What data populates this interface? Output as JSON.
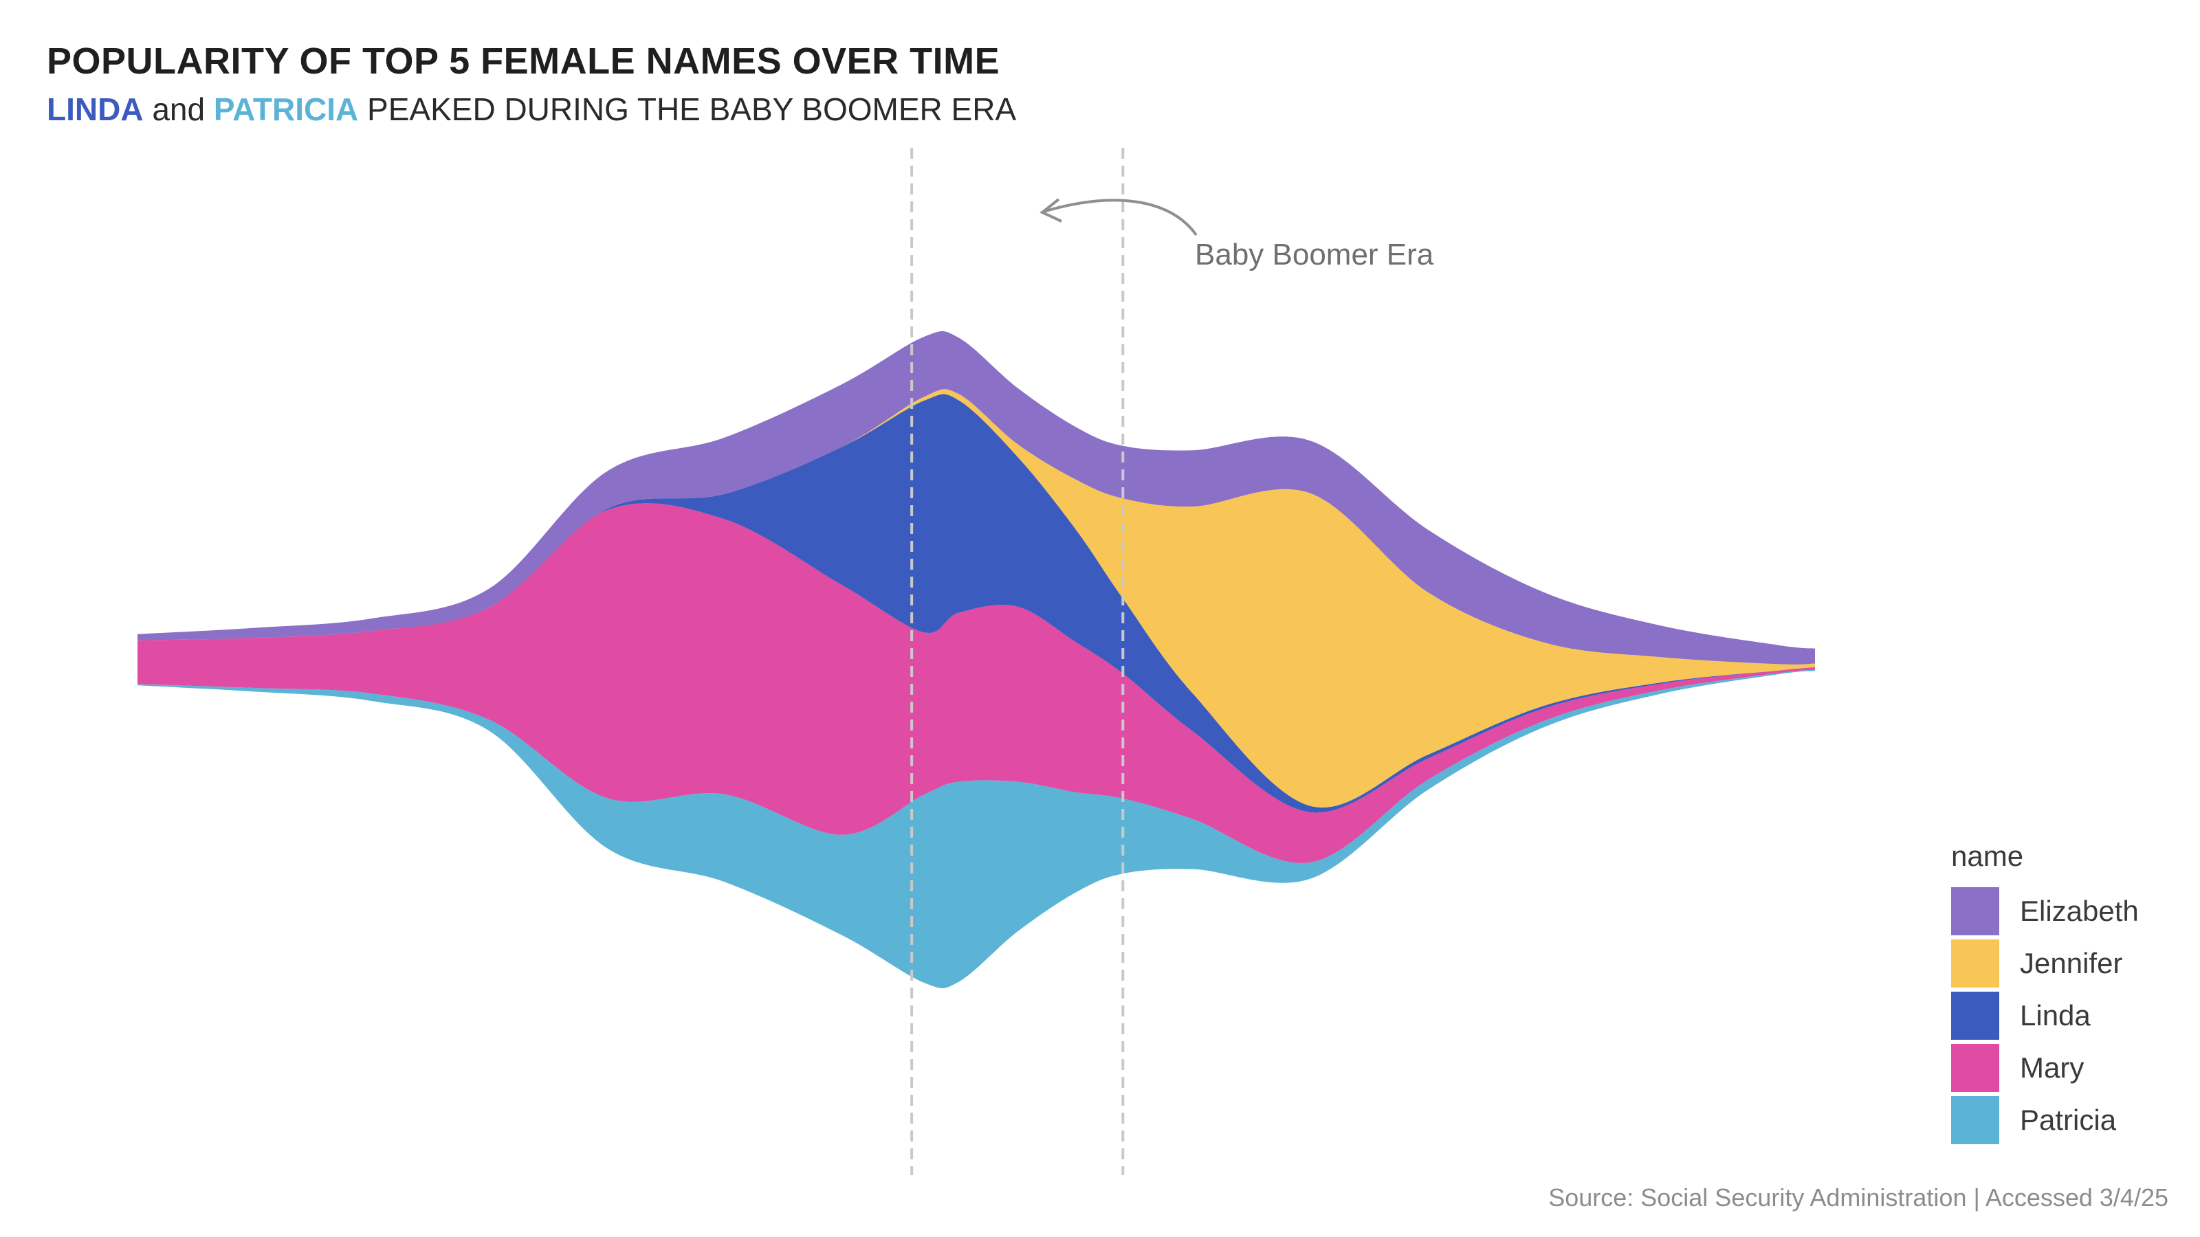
{
  "title": "POPULARITY OF TOP 5 FEMALE NAMES OVER TIME",
  "subtitle": {
    "linda": "LINDA",
    "and": "and",
    "patricia": "PATRICIA",
    "rest": "PEAKED DURING THE BABY BOOMER ERA"
  },
  "legend": {
    "title": "name",
    "items": [
      {
        "label": "Elizabeth",
        "color": "#8A70C6"
      },
      {
        "label": "Jennifer",
        "color": "#F8C557"
      },
      {
        "label": "Linda",
        "color": "#3C5BBE"
      },
      {
        "label": "Mary",
        "color": "#E04BA3"
      },
      {
        "label": "Patricia",
        "color": "#5BB4D6"
      }
    ]
  },
  "source": "Source: Social Security Administration | Accessed 3/4/25",
  "chart_data": {
    "type": "area",
    "stacking": "streamgraph (centered)",
    "title": "POPULARITY OF TOP 5 FEMALE NAMES OVER TIME",
    "x": [
      1880,
      1890,
      1900,
      1910,
      1920,
      1930,
      1940,
      1947,
      1950,
      1955,
      1960,
      1964,
      1970,
      1980,
      1990,
      2000,
      2010,
      2020,
      2023
    ],
    "series": [
      {
        "name": "Patricia",
        "values": [
          0.1,
          0.3,
          0.6,
          0.9,
          4.0,
          7.0,
          8.0,
          15.0,
          16.0,
          12.0,
          8.0,
          6.0,
          4.0,
          1.3,
          0.8,
          0.5,
          0.3,
          0.1,
          0.1
        ]
      },
      {
        "name": "Mary",
        "values": [
          3.5,
          4.0,
          5.0,
          9.0,
          23.0,
          22.0,
          20.0,
          13.0,
          13.5,
          14.0,
          12.0,
          10.0,
          7.0,
          4.0,
          1.7,
          1.0,
          0.5,
          0.2,
          0.2
        ]
      },
      {
        "name": "Linda",
        "values": [
          0.0,
          0.0,
          0.0,
          0.0,
          0.1,
          2.0,
          11.0,
          18.5,
          17.0,
          12.0,
          9.0,
          6.0,
          3.0,
          0.5,
          0.3,
          0.2,
          0.1,
          0.0,
          0.0
        ]
      },
      {
        "name": "Jennifer",
        "values": [
          0.0,
          0.0,
          0.0,
          0.0,
          0.0,
          0.0,
          0.0,
          0.3,
          0.5,
          1.0,
          4.0,
          8.0,
          15.0,
          25.0,
          13.0,
          5.0,
          2.0,
          0.5,
          0.3
        ]
      },
      {
        "name": "Elizabeth",
        "values": [
          0.5,
          0.8,
          1.0,
          1.5,
          3.0,
          4.5,
          5.0,
          4.8,
          4.5,
          4.5,
          4.2,
          4.2,
          4.5,
          4.2,
          5.0,
          4.0,
          2.5,
          1.5,
          1.2
        ]
      }
    ],
    "order_bottom_to_top": [
      "Patricia",
      "Mary",
      "Linda",
      "Jennifer",
      "Elizabeth"
    ],
    "highlight_band": {
      "label": "Baby Boomer Era",
      "start": 1946,
      "end": 1964
    },
    "annotation": "Baby Boomer Era",
    "xlabel": "",
    "ylabel": "",
    "axes_visible": false,
    "grid": false,
    "legend_position": "right"
  }
}
